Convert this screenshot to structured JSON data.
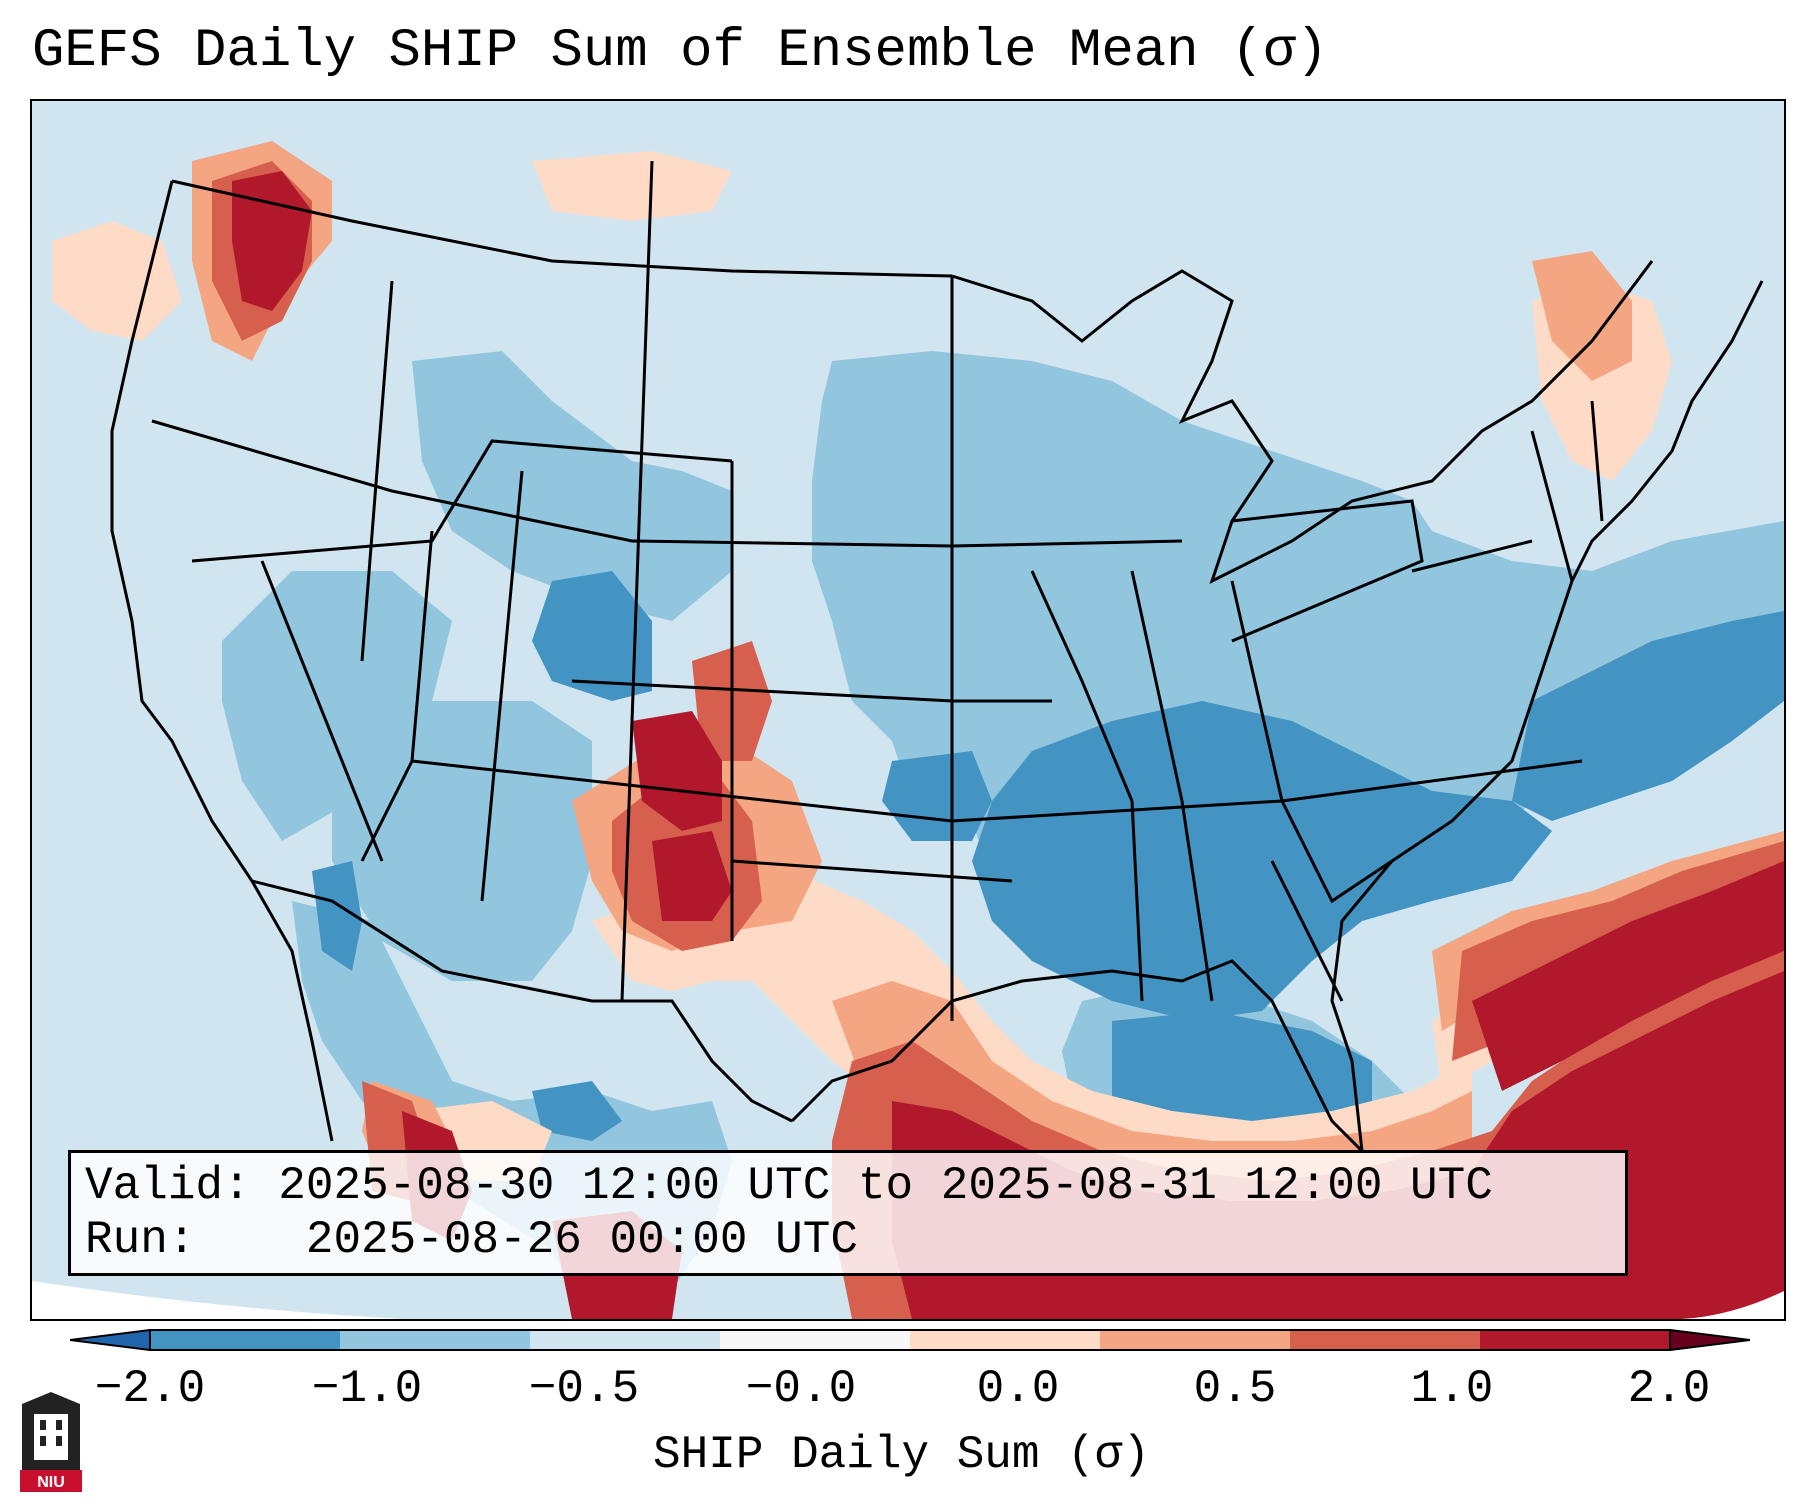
{
  "title": "GEFS Daily SHIP Sum of Ensemble Mean (σ)",
  "info": {
    "valid_label": "Valid:",
    "valid_value": "2025-08-30 12:00 UTC to 2025-08-31 12:00 UTC",
    "run_label": "Run:",
    "run_value": "2025-08-26 00:00 UTC"
  },
  "colorbar": {
    "label": "SHIP Daily Sum (σ)",
    "ticks": [
      "−2.0",
      "−1.0",
      "−0.5",
      "−0.0",
      "0.0",
      "0.5",
      "1.0",
      "2.0"
    ],
    "colors": [
      "#4393c3",
      "#92c5de",
      "#d1e5f0",
      "#f7f7f7",
      "#fddbc7",
      "#f4a582",
      "#d6604d",
      "#b2182b"
    ],
    "extend": "both"
  },
  "map_legend_colors": {
    "strong_negative": "#4393c3",
    "negative": "#92c5de",
    "weak_negative": "#d1e5f0",
    "weak_positive": "#fddbc7",
    "positive": "#f4a582",
    "moderate_positive": "#d6604d",
    "strong_positive": "#b2182b"
  },
  "logo": {
    "text": "NIU",
    "color": "#c8102e"
  },
  "region": "Continental United States"
}
